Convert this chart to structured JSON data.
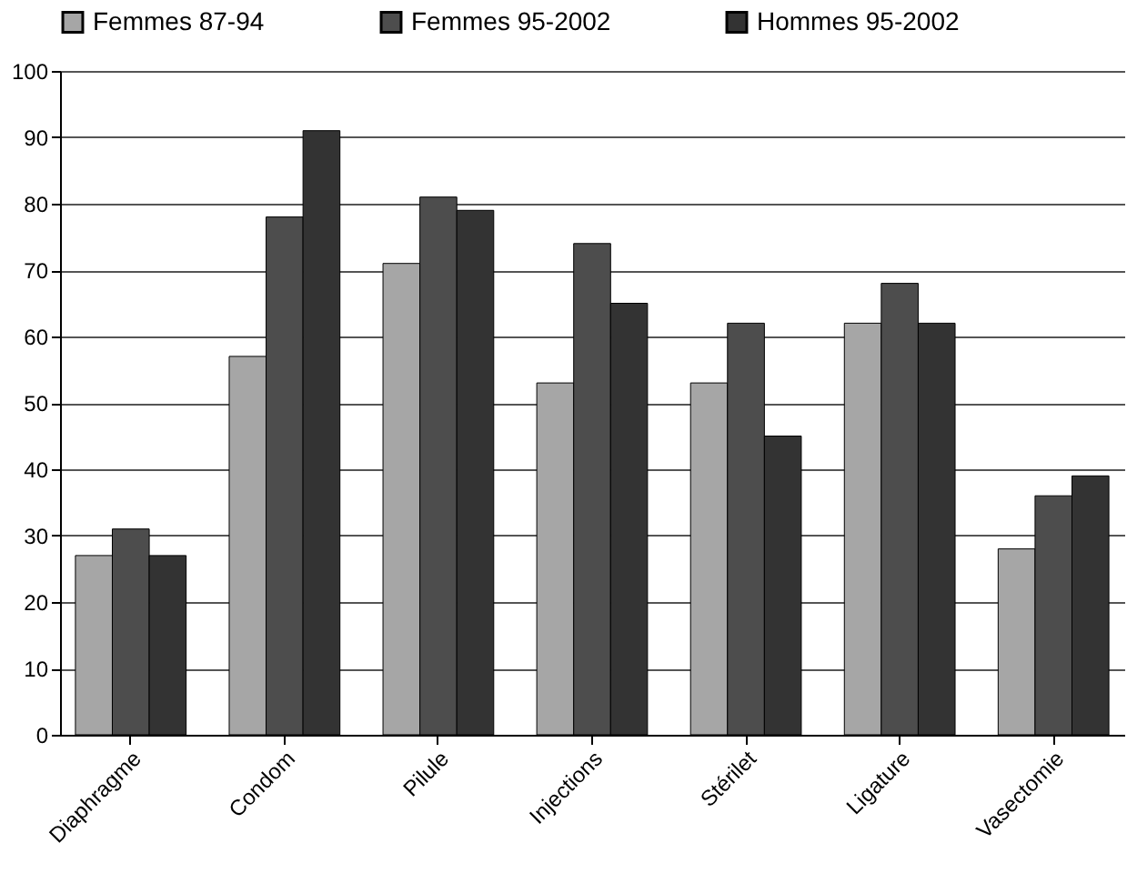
{
  "chart_data": {
    "type": "bar",
    "categories": [
      "Diaphragme",
      "Condom",
      "Pilule",
      "Injections",
      "Stérilet",
      "Ligature",
      "Vasectomie"
    ],
    "series": [
      {
        "name": "Femmes 87-94",
        "color": "#a6a6a6",
        "values": [
          27,
          57,
          71,
          53,
          53,
          62,
          28
        ]
      },
      {
        "name": "Femmes 95-2002",
        "color": "#4d4d4d",
        "values": [
          31,
          78,
          81,
          74,
          62,
          68,
          36
        ]
      },
      {
        "name": "Hommes 95-2002",
        "color": "#333333",
        "values": [
          27,
          91,
          79,
          65,
          45,
          62,
          39
        ]
      }
    ],
    "ylim": [
      0,
      100
    ],
    "yticks": [
      0,
      10,
      20,
      30,
      40,
      50,
      60,
      70,
      80,
      90,
      100
    ],
    "grid": "y",
    "legend": "top"
  }
}
